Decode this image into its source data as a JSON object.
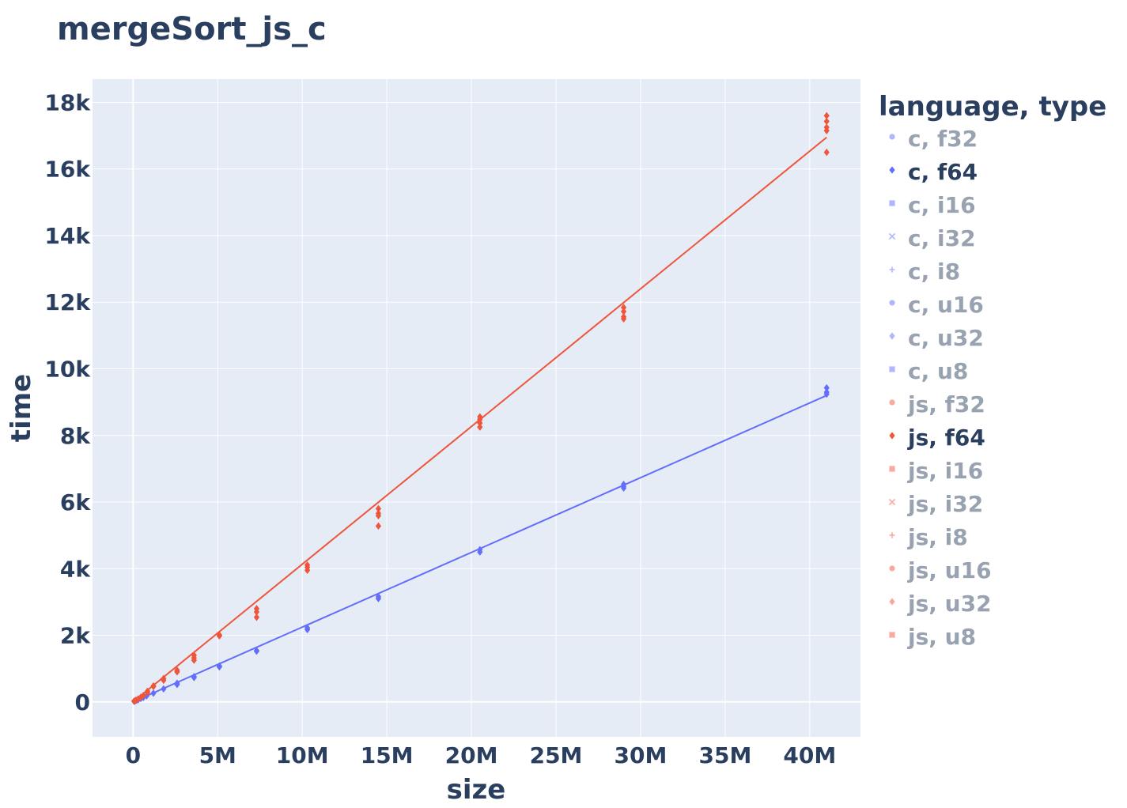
{
  "chart_data": {
    "type": "scatter",
    "title": "mergeSort_js_c",
    "xlabel": "size",
    "ylabel": "time",
    "xlim": [
      -2400000,
      43000000
    ],
    "ylim": [
      -1050,
      18700
    ],
    "x_ticks": [
      {
        "value": 0,
        "label": "0"
      },
      {
        "value": 5000000,
        "label": "5M"
      },
      {
        "value": 10000000,
        "label": "10M"
      },
      {
        "value": 15000000,
        "label": "15M"
      },
      {
        "value": 20000000,
        "label": "20M"
      },
      {
        "value": 25000000,
        "label": "25M"
      },
      {
        "value": 30000000,
        "label": "30M"
      },
      {
        "value": 35000000,
        "label": "35M"
      },
      {
        "value": 40000000,
        "label": "40M"
      }
    ],
    "y_ticks": [
      {
        "value": 0,
        "label": "0"
      },
      {
        "value": 2000,
        "label": "2k"
      },
      {
        "value": 4000,
        "label": "4k"
      },
      {
        "value": 6000,
        "label": "6k"
      },
      {
        "value": 8000,
        "label": "8k"
      },
      {
        "value": 10000,
        "label": "10k"
      },
      {
        "value": 12000,
        "label": "12k"
      },
      {
        "value": 14000,
        "label": "14k"
      },
      {
        "value": 16000,
        "label": "16k"
      },
      {
        "value": 18000,
        "label": "18k"
      }
    ],
    "grid": true,
    "legend": {
      "title": "language, type",
      "placement": "right"
    },
    "series": [
      {
        "name": "c, f32",
        "color": "#636efa",
        "symbol": "circle",
        "active": false,
        "points": []
      },
      {
        "name": "c, f64",
        "color": "#636efa",
        "symbol": "diamond",
        "active": true,
        "points": [
          [
            100000,
            20
          ],
          [
            200000,
            45
          ],
          [
            300000,
            65
          ],
          [
            450000,
            100
          ],
          [
            600000,
            130
          ],
          [
            800000,
            180
          ],
          [
            1200000,
            260
          ],
          [
            1800000,
            390
          ],
          [
            2600000,
            560
          ],
          [
            2600000,
            520
          ],
          [
            3600000,
            760
          ],
          [
            3600000,
            730
          ],
          [
            5100000,
            1080
          ],
          [
            5100000,
            1050
          ],
          [
            7300000,
            1540
          ],
          [
            7300000,
            1520
          ],
          [
            10300000,
            2220
          ],
          [
            10300000,
            2170
          ],
          [
            14500000,
            3160
          ],
          [
            14500000,
            3100
          ],
          [
            20500000,
            4570
          ],
          [
            20500000,
            4500
          ],
          [
            29000000,
            6530
          ],
          [
            29000000,
            6470
          ],
          [
            29000000,
            6420
          ],
          [
            41000000,
            9430
          ],
          [
            41000000,
            9300
          ],
          [
            41000000,
            9240
          ]
        ],
        "trend": [
          [
            0,
            0
          ],
          [
            41000000,
            9200
          ]
        ]
      },
      {
        "name": "c, i16",
        "color": "#636efa",
        "symbol": "square",
        "active": false,
        "points": []
      },
      {
        "name": "c, i32",
        "color": "#636efa",
        "symbol": "x",
        "active": false,
        "points": []
      },
      {
        "name": "c, i8",
        "color": "#636efa",
        "symbol": "cross",
        "active": false,
        "points": []
      },
      {
        "name": "c, u16",
        "color": "#636efa",
        "symbol": "circle",
        "active": false,
        "points": []
      },
      {
        "name": "c, u32",
        "color": "#636efa",
        "symbol": "diamond",
        "active": false,
        "points": []
      },
      {
        "name": "c, u8",
        "color": "#636efa",
        "symbol": "square",
        "active": false,
        "points": []
      },
      {
        "name": "js, f32",
        "color": "#ef553b",
        "symbol": "circle",
        "active": false,
        "points": []
      },
      {
        "name": "js, f64",
        "color": "#ef553b",
        "symbol": "diamond",
        "active": true,
        "points": [
          [
            50000,
            20
          ],
          [
            150000,
            50
          ],
          [
            300000,
            90
          ],
          [
            450000,
            140
          ],
          [
            600000,
            190
          ],
          [
            850000,
            280
          ],
          [
            850000,
            320
          ],
          [
            1200000,
            460
          ],
          [
            1200000,
            480
          ],
          [
            1800000,
            650
          ],
          [
            1800000,
            700
          ],
          [
            2600000,
            950
          ],
          [
            2600000,
            900
          ],
          [
            3600000,
            1400
          ],
          [
            3600000,
            1320
          ],
          [
            3600000,
            1250
          ],
          [
            5100000,
            2010
          ],
          [
            5100000,
            1980
          ],
          [
            7300000,
            2800
          ],
          [
            7300000,
            2700
          ],
          [
            7300000,
            2540
          ],
          [
            10300000,
            4110
          ],
          [
            10300000,
            4040
          ],
          [
            10300000,
            3950
          ],
          [
            14500000,
            5800
          ],
          [
            14500000,
            5660
          ],
          [
            14500000,
            5590
          ],
          [
            14500000,
            5280
          ],
          [
            20500000,
            8560
          ],
          [
            20500000,
            8480
          ],
          [
            20500000,
            8370
          ],
          [
            20500000,
            8250
          ],
          [
            29000000,
            11840
          ],
          [
            29000000,
            11720
          ],
          [
            29000000,
            11560
          ],
          [
            29000000,
            11500
          ],
          [
            41000000,
            17600
          ],
          [
            41000000,
            17430
          ],
          [
            41000000,
            17250
          ],
          [
            41000000,
            17150
          ],
          [
            41000000,
            16500
          ]
        ],
        "trend": [
          [
            0,
            0
          ],
          [
            41000000,
            16950
          ]
        ]
      },
      {
        "name": "js, i16",
        "color": "#ef553b",
        "symbol": "square",
        "active": false,
        "points": []
      },
      {
        "name": "js, i32",
        "color": "#ef553b",
        "symbol": "x",
        "active": false,
        "points": []
      },
      {
        "name": "js, i8",
        "color": "#ef553b",
        "symbol": "cross",
        "active": false,
        "points": []
      },
      {
        "name": "js, u16",
        "color": "#ef553b",
        "symbol": "circle",
        "active": false,
        "points": []
      },
      {
        "name": "js, u32",
        "color": "#ef553b",
        "symbol": "diamond",
        "active": false,
        "points": []
      },
      {
        "name": "js, u8",
        "color": "#ef553b",
        "symbol": "square",
        "active": false,
        "points": []
      }
    ]
  },
  "style": {
    "plot_bg": "#e5ecf6",
    "grid_color": "#ffffff",
    "text_color": "#2a3f5f",
    "inactive_text_color": "#98a2b0"
  }
}
